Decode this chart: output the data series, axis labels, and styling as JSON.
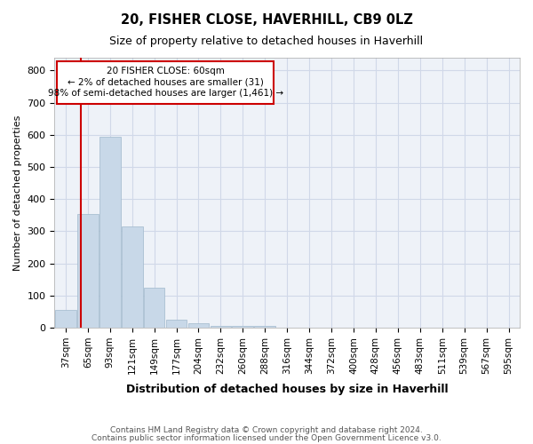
{
  "title": "20, FISHER CLOSE, HAVERHILL, CB9 0LZ",
  "subtitle": "Size of property relative to detached houses in Haverhill",
  "xlabel": "Distribution of detached houses by size in Haverhill",
  "ylabel": "Number of detached properties",
  "footer1": "Contains HM Land Registry data © Crown copyright and database right 2024.",
  "footer2": "Contains public sector information licensed under the Open Government Licence v3.0.",
  "bar_color": "#c8d8e8",
  "bar_edge_color": "#a0b8cc",
  "grid_color": "#d0d8e8",
  "annotation_box_color": "#cc0000",
  "red_line_color": "#cc0000",
  "bin_labels": [
    "37sqm",
    "65sqm",
    "93sqm",
    "121sqm",
    "149sqm",
    "177sqm",
    "204sqm",
    "232sqm",
    "260sqm",
    "288sqm",
    "316sqm",
    "344sqm",
    "372sqm",
    "400sqm",
    "428sqm",
    "456sqm",
    "483sqm",
    "511sqm",
    "539sqm",
    "567sqm",
    "595sqm"
  ],
  "bar_values": [
    55,
    355,
    595,
    315,
    125,
    25,
    15,
    5,
    5,
    5,
    0,
    0,
    0,
    0,
    0,
    0,
    0,
    0,
    0,
    0,
    0
  ],
  "property_label": "20 FISHER CLOSE: 60sqm",
  "annotation_line1": "← 2% of detached houses are smaller (31)",
  "annotation_line2": "98% of semi-detached houses are larger (1,461) →",
  "ylim": [
    0,
    840
  ],
  "yticks": [
    0,
    100,
    200,
    300,
    400,
    500,
    600,
    700,
    800
  ],
  "red_line_x": 0.68,
  "background_color": "#eef2f8"
}
